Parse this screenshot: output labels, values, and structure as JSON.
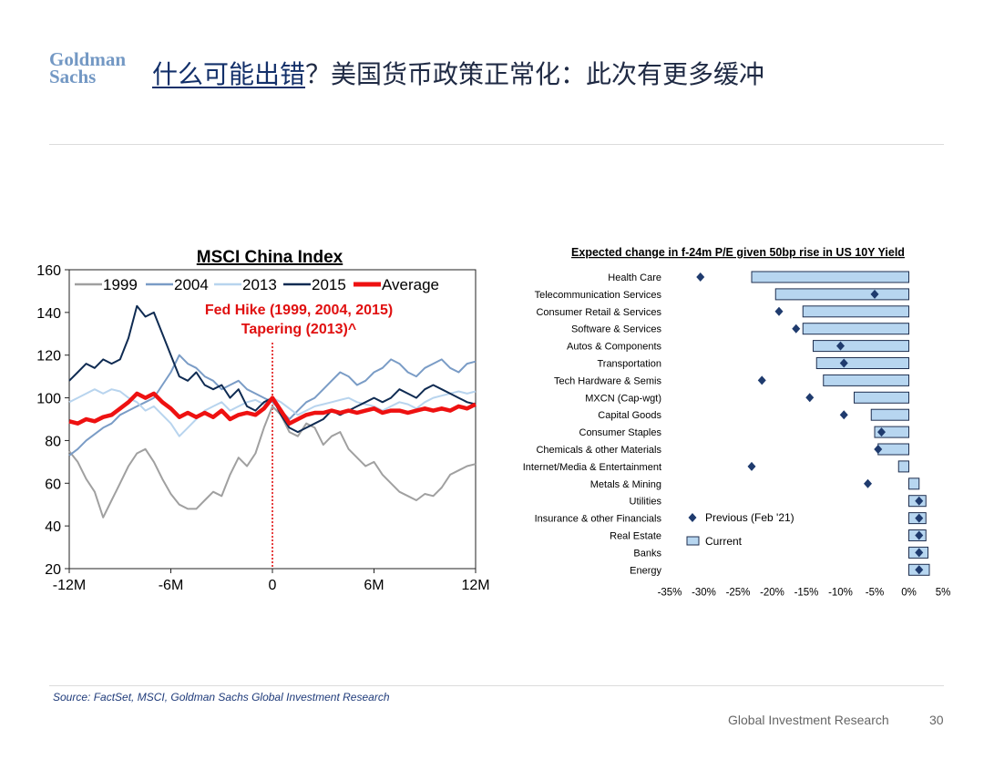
{
  "header": {
    "logo_line1": "Goldman",
    "logo_line2": "Sachs",
    "title_underlined": "什么可能出错",
    "title_rest": "？美国货币政策正常化：此次有更多缓冲"
  },
  "footer": {
    "source": "Source: FactSet, MSCI, Goldman Sachs Global Investment Research",
    "brand": "Global Investment Research",
    "page_number": "30"
  },
  "chart_data": [
    {
      "type": "line",
      "title": "MSCI China Index",
      "annotation_line1": "Fed Hike (1999, 2004, 2015)",
      "annotation_line2": "Tapering (2013)^",
      "x_ticks": [
        -12,
        -6,
        0,
        6,
        12
      ],
      "x_tick_labels": [
        "-12M",
        "-6M",
        "0",
        "6M",
        "12M"
      ],
      "xlim": [
        -12,
        12
      ],
      "ylim": [
        20,
        160
      ],
      "y_ticks": [
        20,
        40,
        60,
        80,
        100,
        120,
        140,
        160
      ],
      "legend_position": "top",
      "series": [
        {
          "name": "1999",
          "color": "#a0a0a0",
          "x": [
            -12,
            -11.5,
            -11,
            -10.5,
            -10,
            -9.5,
            -9,
            -8.5,
            -8,
            -7.5,
            -7,
            -6.5,
            -6,
            -5.5,
            -5,
            -4.5,
            -4,
            -3.5,
            -3,
            -2.5,
            -2,
            -1.5,
            -1,
            -0.5,
            0,
            0.5,
            1,
            1.5,
            2,
            2.5,
            3,
            3.5,
            4,
            4.5,
            5,
            5.5,
            6,
            6.5,
            7,
            7.5,
            8,
            8.5,
            9,
            9.5,
            10,
            10.5,
            11,
            11.5,
            12
          ],
          "y": [
            75,
            70,
            62,
            56,
            44,
            52,
            60,
            68,
            74,
            76,
            70,
            62,
            55,
            50,
            48,
            48,
            52,
            56,
            54,
            64,
            72,
            68,
            74,
            86,
            96,
            92,
            84,
            82,
            88,
            86,
            78,
            82,
            84,
            76,
            72,
            68,
            70,
            64,
            60,
            56,
            54,
            52,
            55,
            54,
            58,
            64,
            66,
            68,
            69
          ]
        },
        {
          "name": "2004",
          "color": "#7a9cc6",
          "x": [
            -12,
            -11.5,
            -11,
            -10.5,
            -10,
            -9.5,
            -9,
            -8.5,
            -8,
            -7.5,
            -7,
            -6.5,
            -6,
            -5.5,
            -5,
            -4.5,
            -4,
            -3.5,
            -3,
            -2.5,
            -2,
            -1.5,
            -1,
            -0.5,
            0,
            0.5,
            1,
            1.5,
            2,
            2.5,
            3,
            3.5,
            4,
            4.5,
            5,
            5.5,
            6,
            6.5,
            7,
            7.5,
            8,
            8.5,
            9,
            9.5,
            10,
            10.5,
            11,
            11.5,
            12
          ],
          "y": [
            73,
            76,
            80,
            83,
            86,
            88,
            92,
            94,
            96,
            98,
            100,
            106,
            112,
            120,
            116,
            114,
            110,
            108,
            104,
            106,
            108,
            104,
            102,
            100,
            98,
            94,
            90,
            94,
            98,
            100,
            104,
            108,
            112,
            110,
            106,
            108,
            112,
            114,
            118,
            116,
            112,
            110,
            114,
            116,
            118,
            114,
            112,
            116,
            117
          ]
        },
        {
          "name": "2013",
          "color": "#b8d4ee",
          "x": [
            -12,
            -11.5,
            -11,
            -10.5,
            -10,
            -9.5,
            -9,
            -8.5,
            -8,
            -7.5,
            -7,
            -6.5,
            -6,
            -5.5,
            -5,
            -4.5,
            -4,
            -3.5,
            -3,
            -2.5,
            -2,
            -1.5,
            -1,
            -0.5,
            0,
            0.5,
            1,
            1.5,
            2,
            2.5,
            3,
            3.5,
            4,
            4.5,
            5,
            5.5,
            6,
            6.5,
            7,
            7.5,
            8,
            8.5,
            9,
            9.5,
            10,
            10.5,
            11,
            11.5,
            12
          ],
          "y": [
            98,
            100,
            102,
            104,
            102,
            104,
            103,
            100,
            98,
            94,
            96,
            92,
            88,
            82,
            86,
            90,
            94,
            96,
            98,
            94,
            96,
            98,
            99,
            97,
            100,
            98,
            95,
            92,
            94,
            96,
            97,
            98,
            99,
            100,
            98,
            97,
            96,
            94,
            96,
            98,
            97,
            95,
            98,
            100,
            101,
            102,
            103,
            102,
            103
          ]
        },
        {
          "name": "2015",
          "color": "#0f2b52",
          "x": [
            -12,
            -11.5,
            -11,
            -10.5,
            -10,
            -9.5,
            -9,
            -8.5,
            -8,
            -7.5,
            -7,
            -6.5,
            -6,
            -5.5,
            -5,
            -4.5,
            -4,
            -3.5,
            -3,
            -2.5,
            -2,
            -1.5,
            -1,
            -0.5,
            0,
            0.5,
            1,
            1.5,
            2,
            2.5,
            3,
            3.5,
            4,
            4.5,
            5,
            5.5,
            6,
            6.5,
            7,
            7.5,
            8,
            8.5,
            9,
            9.5,
            10,
            10.5,
            11,
            11.5,
            12
          ],
          "y": [
            108,
            112,
            116,
            114,
            118,
            116,
            118,
            128,
            143,
            138,
            140,
            130,
            120,
            110,
            108,
            112,
            106,
            104,
            106,
            100,
            104,
            96,
            94,
            98,
            100,
            92,
            86,
            84,
            86,
            88,
            90,
            94,
            92,
            94,
            96,
            98,
            100,
            98,
            100,
            104,
            102,
            100,
            104,
            106,
            104,
            102,
            100,
            98,
            97
          ]
        },
        {
          "name": "Average",
          "color": "#ee1111",
          "x": [
            -12,
            -11.5,
            -11,
            -10.5,
            -10,
            -9.5,
            -9,
            -8.5,
            -8,
            -7.5,
            -7,
            -6.5,
            -6,
            -5.5,
            -5,
            -4.5,
            -4,
            -3.5,
            -3,
            -2.5,
            -2,
            -1.5,
            -1,
            -0.5,
            0,
            0.5,
            1,
            1.5,
            2,
            2.5,
            3,
            3.5,
            4,
            4.5,
            5,
            5.5,
            6,
            6.5,
            7,
            7.5,
            8,
            8.5,
            9,
            9.5,
            10,
            10.5,
            11,
            11.5,
            12
          ],
          "y": [
            89,
            88,
            90,
            89,
            91,
            92,
            95,
            98,
            102,
            100,
            102,
            98,
            95,
            91,
            93,
            91,
            93,
            91,
            94,
            90,
            92,
            93,
            92,
            95,
            100,
            94,
            88,
            90,
            92,
            93,
            93,
            94,
            93,
            94,
            93,
            94,
            95,
            93,
            94,
            94,
            93,
            94,
            95,
            94,
            95,
            94,
            96,
            95,
            97
          ]
        }
      ]
    },
    {
      "type": "bar",
      "orientation": "horizontal",
      "title": "Expected change in f-24m P/E given 50bp rise in US 10Y Yield",
      "categories": [
        "Health Care",
        "Telecommunication Services",
        "Consumer Retail & Services",
        "Software & Services",
        "Autos & Components",
        "Transportation",
        "Tech Hardware & Semis",
        "MXCN (Cap-wgt)",
        "Capital Goods",
        "Consumer Staples",
        "Chemicals & other Materials",
        "Internet/Media & Entertainment",
        "Metals & Mining",
        "Utilities",
        "Insurance & other Financials",
        "Real Estate",
        "Banks",
        "Energy"
      ],
      "series": [
        {
          "name": "Current",
          "kind": "bar",
          "color": "#b7d6f0",
          "values": [
            -23,
            -19.5,
            -15.5,
            -15.5,
            -14,
            -13.5,
            -12.5,
            -8,
            -5.5,
            -5,
            -4.5,
            -1.5,
            1.5,
            2.5,
            2.5,
            2.5,
            2.8,
            3
          ]
        },
        {
          "name": "Previous (Feb '21)",
          "kind": "marker",
          "color": "#1f3b6e",
          "values": [
            -30.5,
            -5,
            -19,
            -16.5,
            -10,
            -9.5,
            -21.5,
            -14.5,
            -9.5,
            -4,
            -4.5,
            -23,
            -6,
            1.5,
            1.5,
            1.5,
            1.5,
            1.5
          ]
        }
      ],
      "xlim": [
        -35,
        5
      ],
      "x_ticks": [
        -35,
        -30,
        -25,
        -20,
        -15,
        -10,
        -5,
        0,
        5
      ],
      "x_tick_labels": [
        "-35%",
        "-30%",
        "-25%",
        "-20%",
        "-15%",
        "-10%",
        "-5%",
        "0%",
        "5%"
      ],
      "legend_position": "lower-left inside plot"
    }
  ]
}
